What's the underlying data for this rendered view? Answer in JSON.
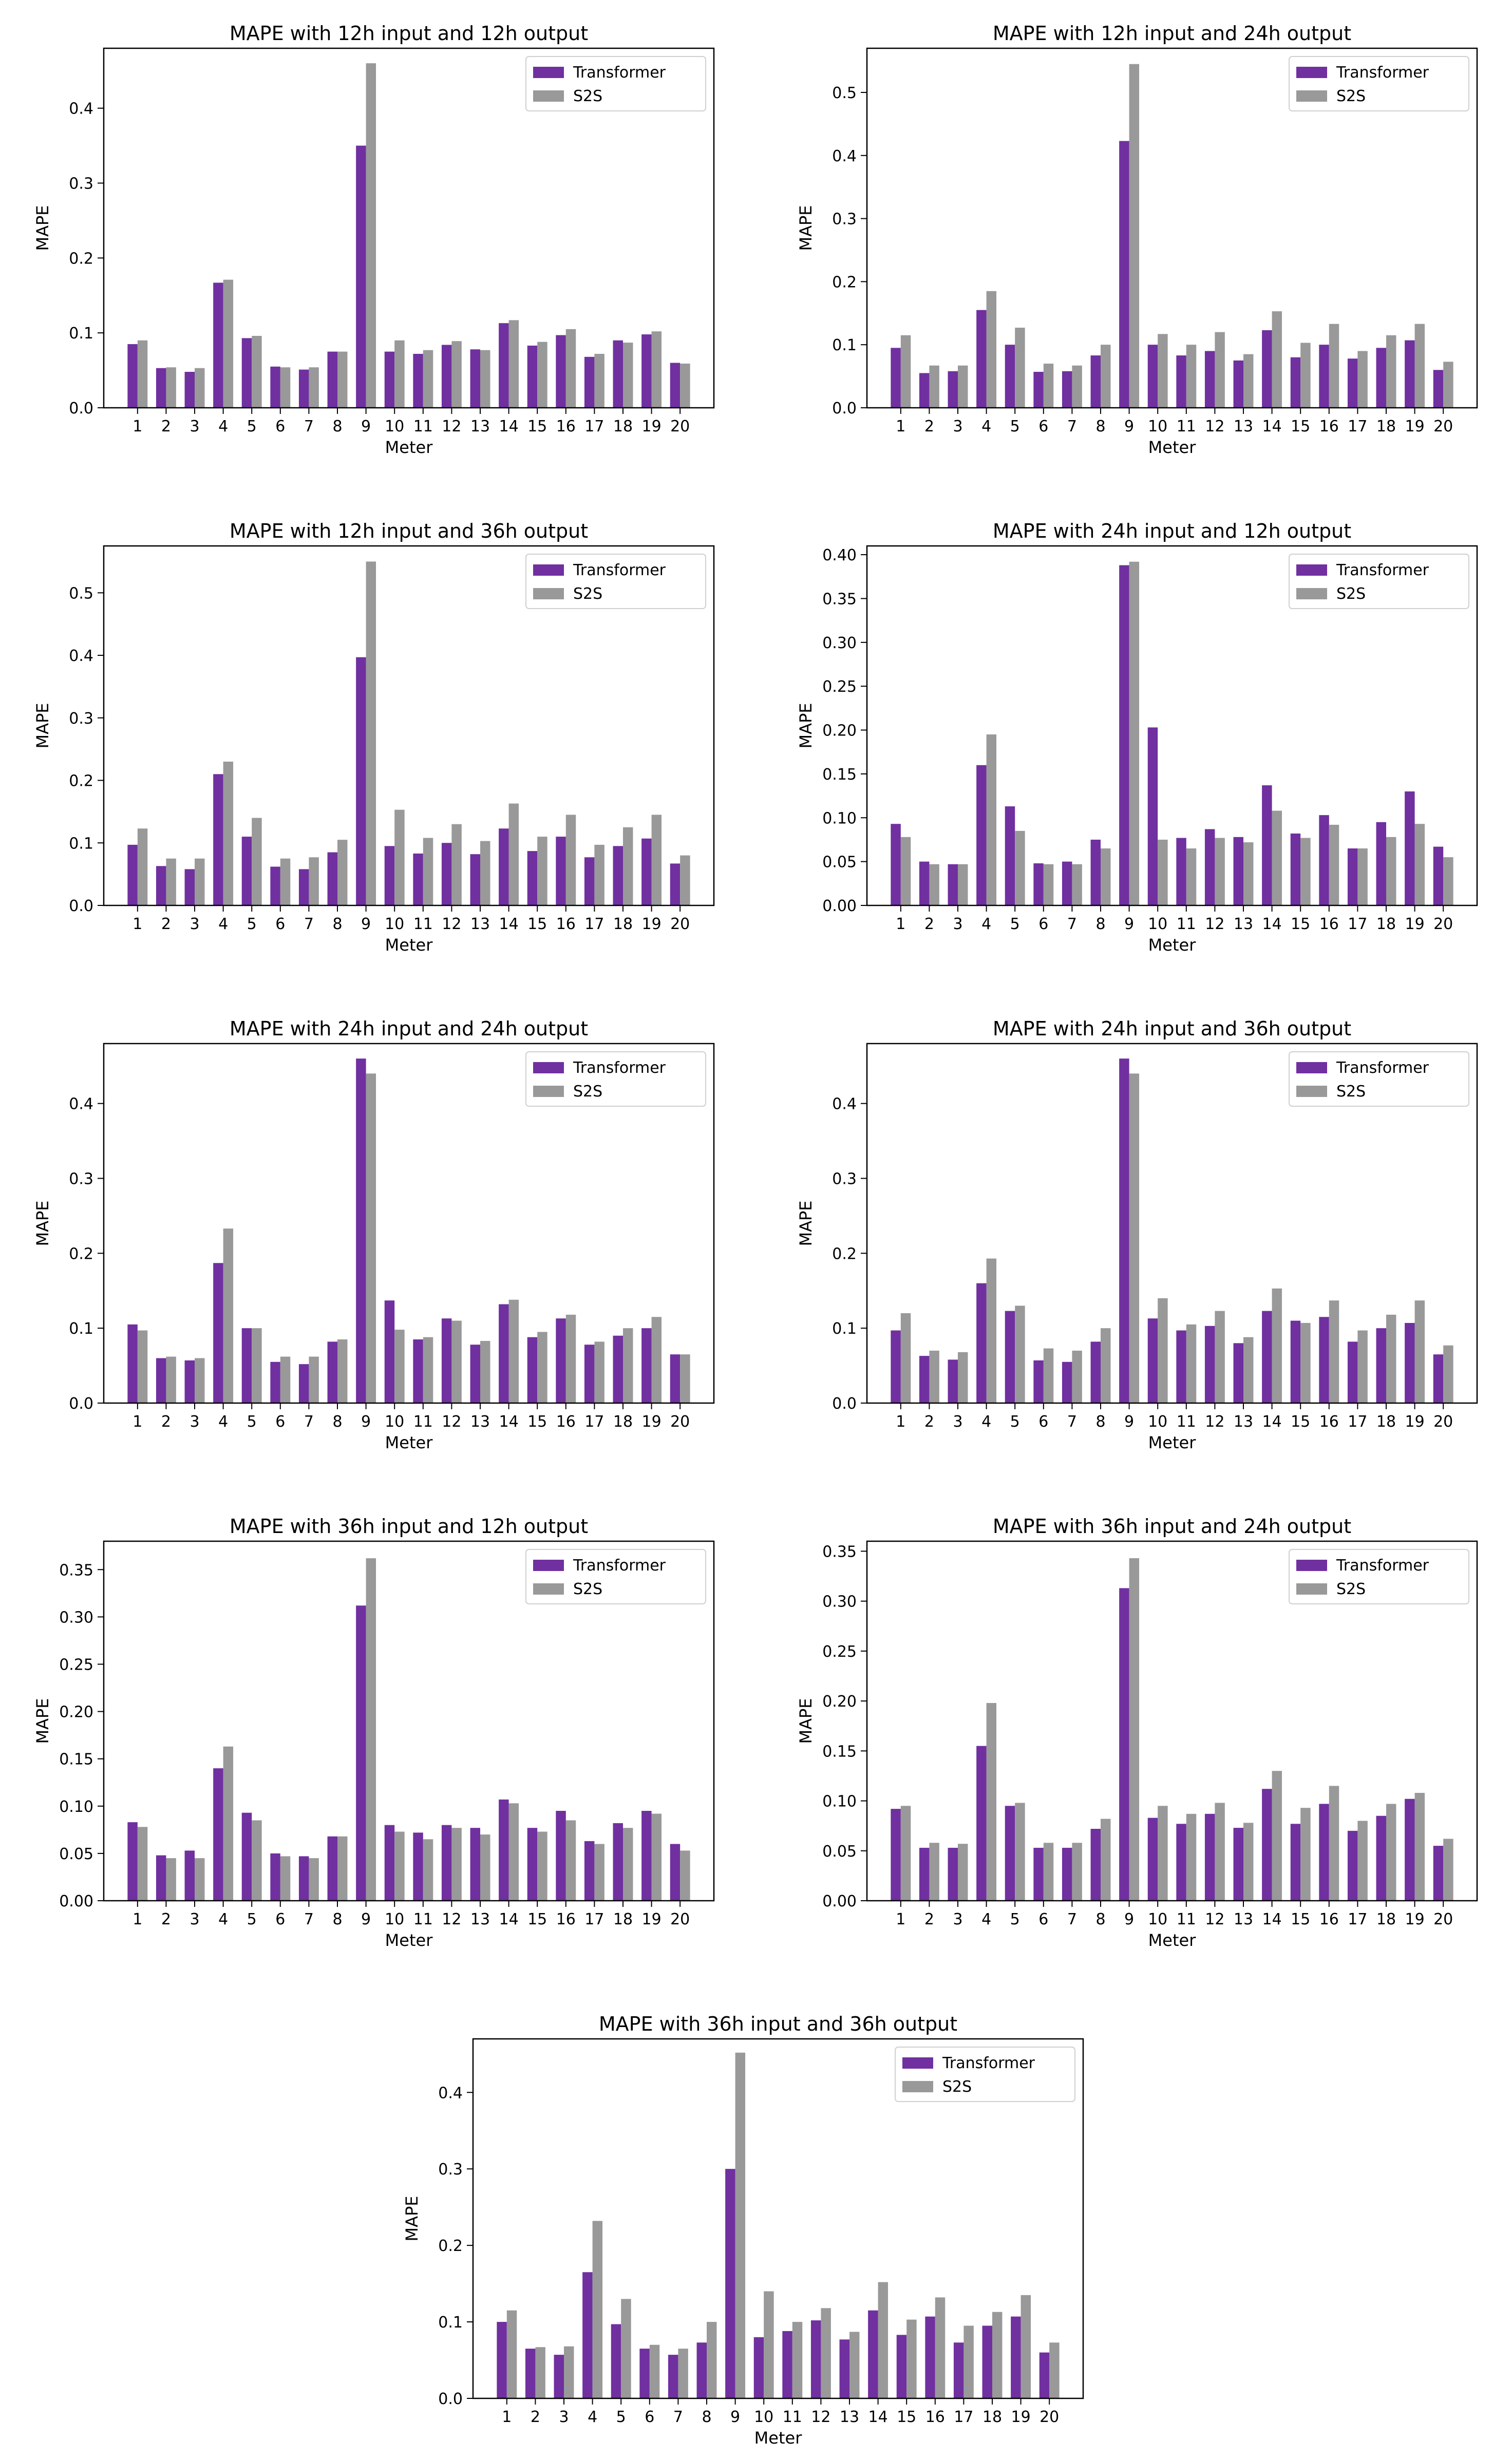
{
  "figure": {
    "background": "#ffffff"
  },
  "colors": {
    "Transformer": "#7030a0",
    "S2S": "#999999",
    "axis": "#000000"
  },
  "chart_data": [
    {
      "type": "bar",
      "title": "MAPE with 12h input and 12h output",
      "xlabel": "Meter",
      "ylabel": "MAPE",
      "ylim": [
        0,
        0.48
      ],
      "yticks": [
        0.0,
        0.1,
        0.2,
        0.3,
        0.4
      ],
      "ytick_labels": [
        "0.0",
        "0.1",
        "0.2",
        "0.3",
        "0.4"
      ],
      "legend": "top-right",
      "categories": [
        "1",
        "2",
        "3",
        "4",
        "5",
        "6",
        "7",
        "8",
        "9",
        "10",
        "11",
        "12",
        "13",
        "14",
        "15",
        "16",
        "17",
        "18",
        "19",
        "20"
      ],
      "series": [
        {
          "name": "Transformer",
          "values": [
            0.085,
            0.053,
            0.048,
            0.167,
            0.093,
            0.055,
            0.051,
            0.075,
            0.35,
            0.075,
            0.072,
            0.084,
            0.078,
            0.113,
            0.083,
            0.097,
            0.068,
            0.09,
            0.098,
            0.06
          ]
        },
        {
          "name": "S2S",
          "values": [
            0.09,
            0.054,
            0.053,
            0.171,
            0.096,
            0.054,
            0.054,
            0.075,
            0.46,
            0.09,
            0.077,
            0.089,
            0.077,
            0.117,
            0.088,
            0.105,
            0.072,
            0.087,
            0.102,
            0.059
          ]
        }
      ]
    },
    {
      "type": "bar",
      "title": "MAPE with 12h input and 24h output",
      "xlabel": "Meter",
      "ylabel": "MAPE",
      "ylim": [
        0,
        0.57
      ],
      "yticks": [
        0.0,
        0.1,
        0.2,
        0.3,
        0.4,
        0.5
      ],
      "ytick_labels": [
        "0.0",
        "0.1",
        "0.2",
        "0.3",
        "0.4",
        "0.5"
      ],
      "legend": "top-right",
      "categories": [
        "1",
        "2",
        "3",
        "4",
        "5",
        "6",
        "7",
        "8",
        "9",
        "10",
        "11",
        "12",
        "13",
        "14",
        "15",
        "16",
        "17",
        "18",
        "19",
        "20"
      ],
      "series": [
        {
          "name": "Transformer",
          "values": [
            0.095,
            0.055,
            0.058,
            0.155,
            0.1,
            0.057,
            0.058,
            0.083,
            0.423,
            0.1,
            0.083,
            0.09,
            0.075,
            0.123,
            0.08,
            0.1,
            0.078,
            0.095,
            0.107,
            0.06
          ]
        },
        {
          "name": "S2S",
          "values": [
            0.115,
            0.067,
            0.067,
            0.185,
            0.127,
            0.07,
            0.067,
            0.1,
            0.545,
            0.117,
            0.1,
            0.12,
            0.085,
            0.153,
            0.103,
            0.133,
            0.09,
            0.115,
            0.133,
            0.073
          ]
        }
      ]
    },
    {
      "type": "bar",
      "title": "MAPE with 12h input and 36h output",
      "xlabel": "Meter",
      "ylabel": "MAPE",
      "ylim": [
        0,
        0.575
      ],
      "yticks": [
        0.0,
        0.1,
        0.2,
        0.3,
        0.4,
        0.5
      ],
      "ytick_labels": [
        "0.0",
        "0.1",
        "0.2",
        "0.3",
        "0.4",
        "0.5"
      ],
      "legend": "top-right",
      "categories": [
        "1",
        "2",
        "3",
        "4",
        "5",
        "6",
        "7",
        "8",
        "9",
        "10",
        "11",
        "12",
        "13",
        "14",
        "15",
        "16",
        "17",
        "18",
        "19",
        "20"
      ],
      "series": [
        {
          "name": "Transformer",
          "values": [
            0.097,
            0.063,
            0.058,
            0.21,
            0.11,
            0.062,
            0.058,
            0.085,
            0.397,
            0.095,
            0.083,
            0.1,
            0.082,
            0.123,
            0.087,
            0.11,
            0.077,
            0.095,
            0.107,
            0.067
          ]
        },
        {
          "name": "S2S",
          "values": [
            0.123,
            0.075,
            0.075,
            0.23,
            0.14,
            0.075,
            0.077,
            0.105,
            0.55,
            0.153,
            0.108,
            0.13,
            0.103,
            0.163,
            0.11,
            0.145,
            0.097,
            0.125,
            0.145,
            0.08
          ]
        }
      ]
    },
    {
      "type": "bar",
      "title": "MAPE with 24h input and 12h output",
      "xlabel": "Meter",
      "ylabel": "MAPE",
      "ylim": [
        0,
        0.41
      ],
      "yticks": [
        0.0,
        0.05,
        0.1,
        0.15,
        0.2,
        0.25,
        0.3,
        0.35,
        0.4
      ],
      "ytick_labels": [
        "0.00",
        "0.05",
        "0.10",
        "0.15",
        "0.20",
        "0.25",
        "0.30",
        "0.35",
        "0.40"
      ],
      "legend": "top-right",
      "categories": [
        "1",
        "2",
        "3",
        "4",
        "5",
        "6",
        "7",
        "8",
        "9",
        "10",
        "11",
        "12",
        "13",
        "14",
        "15",
        "16",
        "17",
        "18",
        "19",
        "20"
      ],
      "series": [
        {
          "name": "Transformer",
          "values": [
            0.093,
            0.05,
            0.047,
            0.16,
            0.113,
            0.048,
            0.05,
            0.075,
            0.388,
            0.203,
            0.077,
            0.087,
            0.078,
            0.137,
            0.082,
            0.103,
            0.065,
            0.095,
            0.13,
            0.067
          ]
        },
        {
          "name": "S2S",
          "values": [
            0.078,
            0.047,
            0.047,
            0.195,
            0.085,
            0.047,
            0.047,
            0.065,
            0.392,
            0.075,
            0.065,
            0.077,
            0.072,
            0.108,
            0.077,
            0.092,
            0.065,
            0.078,
            0.093,
            0.055
          ]
        }
      ]
    },
    {
      "type": "bar",
      "title": "MAPE with 24h input and 24h output",
      "xlabel": "Meter",
      "ylabel": "MAPE",
      "ylim": [
        0,
        0.48
      ],
      "yticks": [
        0.0,
        0.1,
        0.2,
        0.3,
        0.4
      ],
      "ytick_labels": [
        "0.0",
        "0.1",
        "0.2",
        "0.3",
        "0.4"
      ],
      "legend": "top-right",
      "categories": [
        "1",
        "2",
        "3",
        "4",
        "5",
        "6",
        "7",
        "8",
        "9",
        "10",
        "11",
        "12",
        "13",
        "14",
        "15",
        "16",
        "17",
        "18",
        "19",
        "20"
      ],
      "series": [
        {
          "name": "Transformer",
          "values": [
            0.105,
            0.06,
            0.057,
            0.187,
            0.1,
            0.055,
            0.052,
            0.082,
            0.46,
            0.137,
            0.085,
            0.113,
            0.078,
            0.132,
            0.088,
            0.113,
            0.078,
            0.09,
            0.1,
            0.065
          ]
        },
        {
          "name": "S2S",
          "values": [
            0.097,
            0.062,
            0.06,
            0.233,
            0.1,
            0.062,
            0.062,
            0.085,
            0.44,
            0.098,
            0.088,
            0.11,
            0.083,
            0.138,
            0.095,
            0.118,
            0.082,
            0.1,
            0.115,
            0.065
          ]
        }
      ]
    },
    {
      "type": "bar",
      "title": "MAPE with 24h input and 36h output",
      "xlabel": "Meter",
      "ylabel": "MAPE",
      "ylim": [
        0,
        0.48
      ],
      "yticks": [
        0.0,
        0.1,
        0.2,
        0.3,
        0.4
      ],
      "ytick_labels": [
        "0.0",
        "0.1",
        "0.2",
        "0.3",
        "0.4"
      ],
      "legend": "top-right",
      "categories": [
        "1",
        "2",
        "3",
        "4",
        "5",
        "6",
        "7",
        "8",
        "9",
        "10",
        "11",
        "12",
        "13",
        "14",
        "15",
        "16",
        "17",
        "18",
        "19",
        "20"
      ],
      "series": [
        {
          "name": "Transformer",
          "values": [
            0.097,
            0.063,
            0.058,
            0.16,
            0.123,
            0.057,
            0.055,
            0.082,
            0.46,
            0.113,
            0.097,
            0.103,
            0.08,
            0.123,
            0.11,
            0.115,
            0.082,
            0.1,
            0.107,
            0.065
          ]
        },
        {
          "name": "S2S",
          "values": [
            0.12,
            0.07,
            0.068,
            0.193,
            0.13,
            0.073,
            0.07,
            0.1,
            0.44,
            0.14,
            0.105,
            0.123,
            0.088,
            0.153,
            0.107,
            0.137,
            0.097,
            0.118,
            0.137,
            0.077
          ]
        }
      ]
    },
    {
      "type": "bar",
      "title": "MAPE with 36h input and 12h output",
      "xlabel": "Meter",
      "ylabel": "MAPE",
      "ylim": [
        0,
        0.38
      ],
      "yticks": [
        0.0,
        0.05,
        0.1,
        0.15,
        0.2,
        0.25,
        0.3,
        0.35
      ],
      "ytick_labels": [
        "0.00",
        "0.05",
        "0.10",
        "0.15",
        "0.20",
        "0.25",
        "0.30",
        "0.35"
      ],
      "legend": "top-right",
      "categories": [
        "1",
        "2",
        "3",
        "4",
        "5",
        "6",
        "7",
        "8",
        "9",
        "10",
        "11",
        "12",
        "13",
        "14",
        "15",
        "16",
        "17",
        "18",
        "19",
        "20"
      ],
      "series": [
        {
          "name": "Transformer",
          "values": [
            0.083,
            0.048,
            0.053,
            0.14,
            0.093,
            0.05,
            0.047,
            0.068,
            0.312,
            0.08,
            0.072,
            0.08,
            0.077,
            0.107,
            0.077,
            0.095,
            0.063,
            0.082,
            0.095,
            0.06
          ]
        },
        {
          "name": "S2S",
          "values": [
            0.078,
            0.045,
            0.045,
            0.163,
            0.085,
            0.047,
            0.045,
            0.068,
            0.362,
            0.073,
            0.065,
            0.077,
            0.07,
            0.103,
            0.073,
            0.085,
            0.06,
            0.077,
            0.092,
            0.053
          ]
        }
      ]
    },
    {
      "type": "bar",
      "title": "MAPE with 36h input and 24h output",
      "xlabel": "Meter",
      "ylabel": "MAPE",
      "ylim": [
        0,
        0.36
      ],
      "yticks": [
        0.0,
        0.05,
        0.1,
        0.15,
        0.2,
        0.25,
        0.3,
        0.35
      ],
      "ytick_labels": [
        "0.00",
        "0.05",
        "0.10",
        "0.15",
        "0.20",
        "0.25",
        "0.30",
        "0.35"
      ],
      "legend": "top-right",
      "categories": [
        "1",
        "2",
        "3",
        "4",
        "5",
        "6",
        "7",
        "8",
        "9",
        "10",
        "11",
        "12",
        "13",
        "14",
        "15",
        "16",
        "17",
        "18",
        "19",
        "20"
      ],
      "series": [
        {
          "name": "Transformer",
          "values": [
            0.092,
            0.053,
            0.053,
            0.155,
            0.095,
            0.053,
            0.053,
            0.072,
            0.313,
            0.083,
            0.077,
            0.087,
            0.073,
            0.112,
            0.077,
            0.097,
            0.07,
            0.085,
            0.102,
            0.055
          ]
        },
        {
          "name": "S2S",
          "values": [
            0.095,
            0.058,
            0.057,
            0.198,
            0.098,
            0.058,
            0.058,
            0.082,
            0.343,
            0.095,
            0.087,
            0.098,
            0.078,
            0.13,
            0.093,
            0.115,
            0.08,
            0.097,
            0.108,
            0.062
          ]
        }
      ]
    },
    {
      "type": "bar",
      "title": "MAPE with 36h input and 36h output",
      "xlabel": "Meter",
      "ylabel": "MAPE",
      "ylim": [
        0,
        0.47
      ],
      "yticks": [
        0.0,
        0.1,
        0.2,
        0.3,
        0.4
      ],
      "ytick_labels": [
        "0.0",
        "0.1",
        "0.2",
        "0.3",
        "0.4"
      ],
      "legend": "top-right",
      "categories": [
        "1",
        "2",
        "3",
        "4",
        "5",
        "6",
        "7",
        "8",
        "9",
        "10",
        "11",
        "12",
        "13",
        "14",
        "15",
        "16",
        "17",
        "18",
        "19",
        "20"
      ],
      "series": [
        {
          "name": "Transformer",
          "values": [
            0.1,
            0.065,
            0.057,
            0.165,
            0.097,
            0.065,
            0.057,
            0.073,
            0.3,
            0.08,
            0.088,
            0.102,
            0.077,
            0.115,
            0.083,
            0.107,
            0.073,
            0.095,
            0.107,
            0.06
          ]
        },
        {
          "name": "S2S",
          "values": [
            0.115,
            0.067,
            0.068,
            0.232,
            0.13,
            0.07,
            0.065,
            0.1,
            0.452,
            0.14,
            0.1,
            0.118,
            0.087,
            0.152,
            0.103,
            0.132,
            0.095,
            0.113,
            0.135,
            0.073
          ]
        }
      ]
    }
  ]
}
